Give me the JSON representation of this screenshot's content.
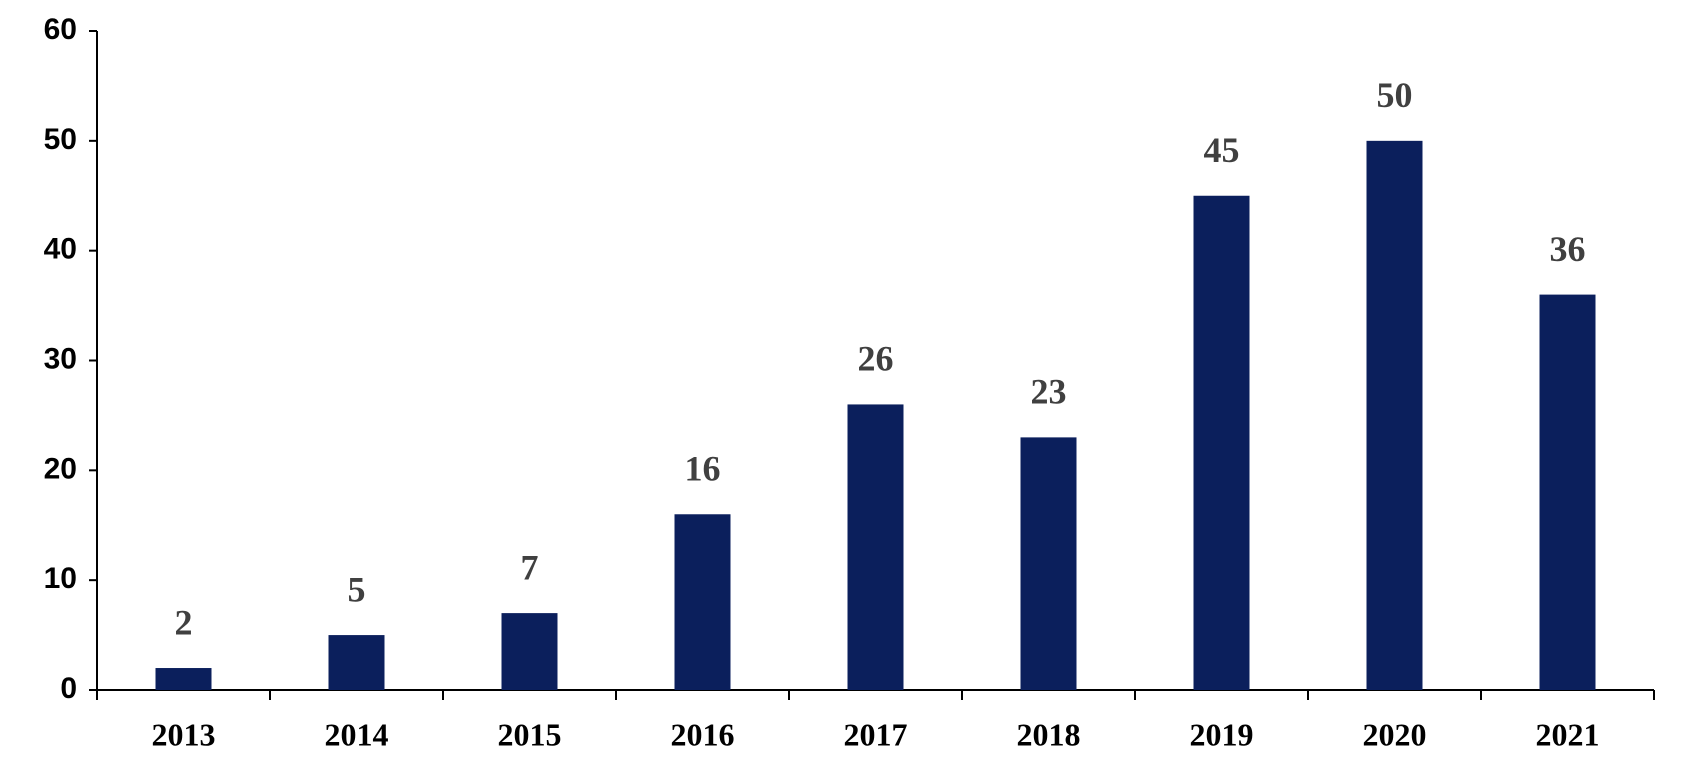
{
  "chart_data": {
    "type": "bar",
    "categories": [
      "2013",
      "2014",
      "2015",
      "2016",
      "2017",
      "2018",
      "2019",
      "2020",
      "2021"
    ],
    "values": [
      2,
      5,
      7,
      16,
      26,
      23,
      45,
      50,
      36
    ],
    "color": "#0b1f5c",
    "ylim": [
      0,
      60
    ],
    "yticks": [
      0,
      10,
      20,
      30,
      40,
      50,
      60
    ],
    "grid": false
  }
}
